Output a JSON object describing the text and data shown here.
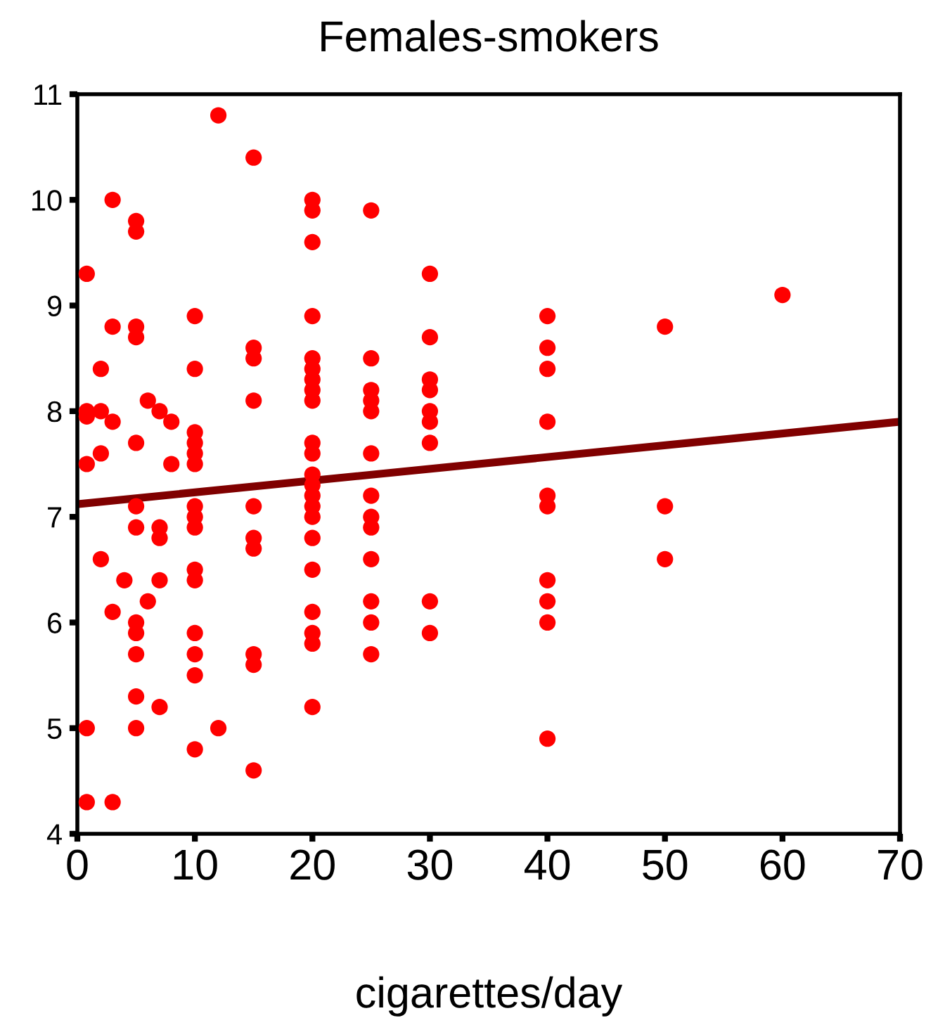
{
  "chart_data": {
    "type": "scatter",
    "title": "Females-smokers",
    "xlabel": "cigarettes/day",
    "xlim": [
      0,
      70
    ],
    "xticks": [
      0,
      10,
      20,
      30,
      40,
      50,
      60,
      70
    ],
    "ylim": [
      4,
      11
    ],
    "yticks": [
      4,
      5,
      6,
      7,
      8,
      9,
      10,
      11
    ],
    "grid": false,
    "series": [
      {
        "marker": "circle",
        "color": "#ff0000",
        "x": [
          0.8,
          0.8,
          0.8,
          0.8,
          0.8,
          0.8,
          2,
          2,
          2,
          2,
          3,
          3,
          3,
          3,
          3,
          4,
          5,
          5,
          5,
          5,
          5,
          5,
          5,
          5,
          5,
          5,
          5,
          5,
          6,
          6,
          7,
          7,
          7,
          7,
          7,
          8,
          8,
          10,
          10,
          10,
          10,
          10,
          10,
          10,
          10,
          10,
          10,
          10,
          10,
          10,
          10,
          10,
          12,
          12,
          15,
          15,
          15,
          15,
          15,
          15,
          15,
          15,
          15,
          15,
          20,
          20,
          20,
          20,
          20,
          20,
          20,
          20,
          20,
          20,
          20,
          20,
          20,
          20,
          20,
          20,
          20,
          20,
          20,
          20,
          20,
          20,
          25,
          25,
          25,
          25,
          25,
          25,
          25,
          25,
          25,
          25,
          25,
          25,
          25,
          30,
          30,
          30,
          30,
          30,
          30,
          30,
          30,
          30,
          40,
          40,
          40,
          40,
          40,
          40,
          40,
          40,
          40,
          40,
          50,
          50,
          50,
          60
        ],
        "values": [
          9.3,
          8.0,
          7.95,
          7.5,
          5.0,
          4.3,
          8.4,
          8.0,
          7.6,
          6.6,
          10.0,
          8.8,
          7.9,
          6.1,
          4.3,
          6.4,
          9.8,
          9.7,
          8.8,
          8.7,
          7.7,
          7.1,
          6.9,
          6.0,
          5.9,
          5.7,
          5.3,
          5.0,
          8.1,
          6.2,
          8.0,
          6.9,
          6.8,
          6.4,
          5.2,
          7.9,
          7.5,
          8.9,
          8.4,
          7.8,
          7.7,
          7.6,
          7.5,
          7.1,
          7.0,
          6.9,
          6.5,
          6.4,
          5.9,
          5.7,
          5.5,
          4.8,
          10.8,
          5.0,
          10.4,
          8.6,
          8.5,
          8.1,
          7.1,
          6.8,
          6.7,
          5.7,
          5.6,
          4.6,
          10.0,
          9.9,
          9.6,
          8.9,
          8.5,
          8.4,
          8.3,
          8.2,
          8.1,
          7.7,
          7.6,
          7.4,
          7.3,
          7.2,
          7.1,
          7.0,
          6.8,
          6.5,
          6.1,
          5.9,
          5.8,
          5.2,
          9.9,
          8.5,
          8.2,
          8.1,
          8.0,
          7.6,
          7.2,
          7.0,
          6.9,
          6.6,
          6.2,
          6.0,
          5.7,
          9.3,
          8.7,
          8.3,
          8.2,
          8.0,
          7.9,
          7.7,
          6.2,
          5.9,
          8.9,
          8.6,
          8.4,
          7.9,
          7.2,
          7.1,
          6.4,
          6.2,
          6.0,
          4.9,
          8.8,
          7.1,
          6.6,
          9.1
        ]
      },
      {
        "type": "line",
        "color": "#800000",
        "x": [
          0,
          70
        ],
        "values": [
          7.12,
          7.9
        ]
      }
    ]
  }
}
